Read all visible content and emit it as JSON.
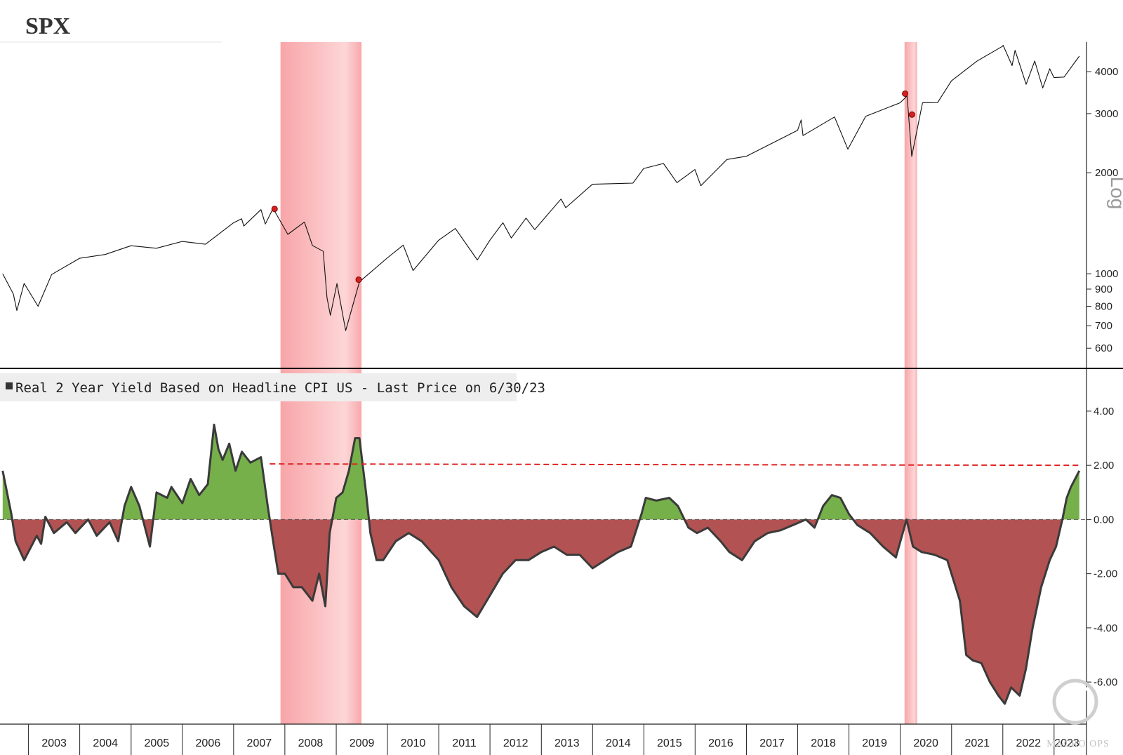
{
  "chart_data": [
    {
      "type": "line",
      "title": "SPX",
      "yscale": "log",
      "ylim": [
        530,
        4900
      ],
      "yticks": [
        600,
        700,
        800,
        900,
        1000,
        2000,
        3000,
        4000
      ],
      "scale_label": "Log",
      "series": [
        {
          "x": [
            "2002-07-01",
            "2002-09-15",
            "2002-10-10",
            "2002-12-01",
            "2003-03-10",
            "2003-06-15",
            "2003-12-31",
            "2004-06-30",
            "2004-12-31",
            "2005-06-30",
            "2005-12-31",
            "2006-06-15",
            "2006-12-31",
            "2007-02-27",
            "2007-03-15",
            "2007-07-15",
            "2007-08-15",
            "2007-10-09",
            "2008-01-22",
            "2008-05-19",
            "2008-07-15",
            "2008-09-30",
            "2008-10-27",
            "2008-11-20",
            "2009-01-06",
            "2009-03-09",
            "2009-06-15",
            "2009-12-31",
            "2010-04-23",
            "2010-07-02",
            "2010-12-31",
            "2011-04-29",
            "2011-10-03",
            "2011-12-31",
            "2012-04-02",
            "2012-06-01",
            "2012-09-14",
            "2012-11-15",
            "2012-12-31",
            "2013-05-21",
            "2013-06-24",
            "2013-12-31",
            "2014-10-15",
            "2014-12-31",
            "2015-05-21",
            "2015-08-25",
            "2015-12-31",
            "2016-02-11",
            "2016-08-15",
            "2016-12-31",
            "2017-12-31",
            "2018-01-26",
            "2018-02-08",
            "2018-09-20",
            "2018-12-24",
            "2019-04-30",
            "2019-12-31",
            "2020-02-19",
            "2020-03-23",
            "2020-06-08",
            "2020-09-23",
            "2020-12-31",
            "2021-06-30",
            "2021-12-31",
            "2022-01-03",
            "2022-03-08",
            "2022-03-29",
            "2022-06-16",
            "2022-08-16",
            "2022-10-12",
            "2022-12-01",
            "2022-12-31",
            "2023-03-13",
            "2023-06-30"
          ],
          "y": [
            1000,
            870,
            777,
            936,
            800,
            995,
            1112,
            1141,
            1212,
            1191,
            1248,
            1224,
            1418,
            1459,
            1387,
            1553,
            1406,
            1565,
            1310,
            1426,
            1214,
            1166,
            848,
            752,
            935,
            677,
            946,
            1115,
            1217,
            1022,
            1258,
            1364,
            1099,
            1258,
            1419,
            1278,
            1465,
            1353,
            1426,
            1669,
            1573,
            1848,
            1862,
            2059,
            2131,
            1868,
            2044,
            1829,
            2190,
            2239,
            2674,
            2873,
            2581,
            2931,
            2351,
            2946,
            3231,
            3386,
            2237,
            3232,
            3236,
            3756,
            4298,
            4766,
            4796,
            4170,
            4631,
            3667,
            4305,
            3577,
            4080,
            3840,
            3855,
            4450
          ]
        }
      ]
    },
    {
      "type": "area",
      "legend": "Real 2 Year Yield Based on Headline CPI US - Last Price on 6/30/23",
      "ylim": [
        -7.5,
        5.5
      ],
      "yticks": [
        -6,
        -4,
        -2,
        0,
        2,
        4
      ],
      "ytick_labels": [
        "-6.00",
        "-4.00",
        "-2.00",
        "0.00",
        "2.00",
        "4.00"
      ],
      "threshold_line": 2.0,
      "colors": {
        "positive": "#76b04a",
        "negative": "#b25252",
        "line": "#3a3a3a",
        "threshold": "#e02020"
      },
      "series": [
        {
          "x": [
            "2002-07-01",
            "2002-09-01",
            "2002-10-01",
            "2002-12-01",
            "2003-03-01",
            "2003-04-01",
            "2003-05-01",
            "2003-07-01",
            "2003-10-01",
            "2003-12-01",
            "2004-03-01",
            "2004-05-01",
            "2004-08-01",
            "2004-10-01",
            "2004-11-15",
            "2005-01-01",
            "2005-03-01",
            "2005-05-15",
            "2005-07-01",
            "2005-09-15",
            "2005-10-15",
            "2006-01-01",
            "2006-03-01",
            "2006-05-01",
            "2006-07-01",
            "2006-08-15",
            "2006-09-15",
            "2006-10-15",
            "2006-12-01",
            "2007-01-15",
            "2007-03-01",
            "2007-05-01",
            "2007-07-15",
            "2007-09-01",
            "2007-10-15",
            "2007-11-15",
            "2008-01-01",
            "2008-03-01",
            "2008-05-01",
            "2008-07-15",
            "2008-09-01",
            "2008-10-15",
            "2008-11-15",
            "2009-01-01",
            "2009-02-15",
            "2009-04-01",
            "2009-05-15",
            "2009-06-15",
            "2009-08-01",
            "2009-09-01",
            "2009-10-15",
            "2009-12-01",
            "2010-03-01",
            "2010-06-01",
            "2010-09-01",
            "2011-01-01",
            "2011-04-01",
            "2011-07-01",
            "2011-10-01",
            "2012-01-01",
            "2012-04-01",
            "2012-07-01",
            "2012-10-01",
            "2013-01-01",
            "2013-04-01",
            "2013-07-01",
            "2013-10-01",
            "2014-01-01",
            "2014-04-01",
            "2014-07-01",
            "2014-10-01",
            "2014-12-15",
            "2015-01-15",
            "2015-04-01",
            "2015-07-01",
            "2015-09-01",
            "2015-11-15",
            "2016-01-15",
            "2016-04-01",
            "2016-07-01",
            "2016-09-01",
            "2016-12-01",
            "2017-03-01",
            "2017-06-01",
            "2017-09-01",
            "2017-12-01",
            "2018-03-01",
            "2018-05-01",
            "2018-07-01",
            "2018-09-01",
            "2018-11-01",
            "2019-01-01",
            "2019-03-01",
            "2019-06-01",
            "2019-09-01",
            "2019-12-01",
            "2020-02-15",
            "2020-04-01",
            "2020-06-01",
            "2020-09-01",
            "2020-12-01",
            "2021-03-01",
            "2021-04-15",
            "2021-06-01",
            "2021-08-01",
            "2021-10-01",
            "2021-12-01",
            "2022-01-15",
            "2022-03-01",
            "2022-05-01",
            "2022-06-15",
            "2022-08-01",
            "2022-10-01",
            "2022-12-01",
            "2023-01-15",
            "2023-03-01",
            "2023-04-01",
            "2023-05-01",
            "2023-06-30"
          ],
          "y": [
            1.8,
            0.2,
            -0.8,
            -1.5,
            -0.6,
            -0.9,
            0.1,
            -0.5,
            -0.1,
            -0.5,
            0.0,
            -0.6,
            -0.1,
            -0.8,
            0.5,
            1.2,
            0.5,
            -1.0,
            1.0,
            0.8,
            1.2,
            0.6,
            1.5,
            0.9,
            1.3,
            3.5,
            2.6,
            2.2,
            2.8,
            1.8,
            2.5,
            2.1,
            2.3,
            0.5,
            -1.0,
            -2.0,
            -2.0,
            -2.5,
            -2.5,
            -3.0,
            -2.0,
            -3.2,
            -0.5,
            0.8,
            1.0,
            1.8,
            3.0,
            3.0,
            1.0,
            -0.5,
            -1.5,
            -1.5,
            -0.8,
            -0.5,
            -0.8,
            -1.5,
            -2.5,
            -3.2,
            -3.6,
            -2.8,
            -2.0,
            -1.5,
            -1.5,
            -1.2,
            -1.0,
            -1.3,
            -1.3,
            -1.8,
            -1.5,
            -1.2,
            -1.0,
            0.2,
            0.8,
            0.7,
            0.8,
            0.5,
            -0.3,
            -0.5,
            -0.3,
            -0.8,
            -1.2,
            -1.5,
            -0.8,
            -0.5,
            -0.4,
            -0.2,
            0.0,
            -0.3,
            0.5,
            0.9,
            0.8,
            0.2,
            -0.2,
            -0.5,
            -1.0,
            -1.4,
            0.0,
            -1.0,
            -1.2,
            -1.3,
            -1.5,
            -3.0,
            -5.0,
            -5.2,
            -5.3,
            -6.0,
            -6.5,
            -6.8,
            -6.2,
            -6.5,
            -5.5,
            -4.0,
            -2.5,
            -1.5,
            -1.0,
            0.0,
            0.8,
            1.2,
            1.8
          ]
        }
      ]
    }
  ],
  "recession_bands": [
    {
      "start": "2007-12-01",
      "end": "2009-06-30"
    },
    {
      "start": "2020-02-01",
      "end": "2020-04-30"
    }
  ],
  "signal_markers": [
    {
      "date": "2007-10-20",
      "value": 1560
    },
    {
      "date": "2009-06-10",
      "value": 960
    },
    {
      "date": "2020-02-05",
      "value": 3440
    },
    {
      "date": "2020-03-25",
      "value": 2980
    }
  ],
  "x_axis": {
    "years": [
      "2003",
      "2004",
      "2005",
      "2006",
      "2007",
      "2008",
      "2009",
      "2010",
      "2011",
      "2012",
      "2013",
      "2014",
      "2015",
      "2016",
      "2017",
      "2018",
      "2019",
      "2020",
      "2021",
      "2022",
      "2023"
    ]
  },
  "watermark": "MACRO OPS"
}
